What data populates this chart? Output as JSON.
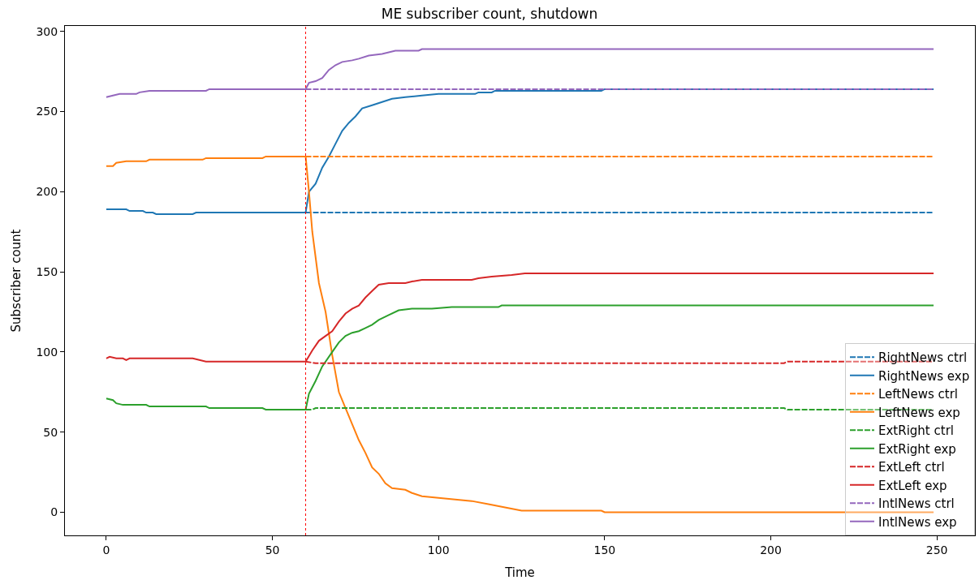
{
  "chart_data": {
    "type": "line",
    "title": "ME subscriber count, shutdown",
    "xlabel": "Time",
    "ylabel": "Subscriber count",
    "xlim": [
      -12.45,
      261.45
    ],
    "ylim": [
      -14.45,
      303.45
    ],
    "xticks": [
      0,
      50,
      100,
      150,
      200,
      250
    ],
    "yticks": [
      0,
      50,
      100,
      150,
      200,
      250,
      300
    ],
    "grid": false,
    "legend": "bottom right",
    "marker": "none",
    "ref_lines": [
      {
        "axis": "x",
        "value": 60,
        "color": "#ff0000",
        "line_style": "dotted"
      }
    ],
    "series": [
      {
        "name": "RightNews ctrl",
        "color": "#1f77b4",
        "line_style": "dashed",
        "x": [
          60,
          249
        ],
        "values": [
          187,
          187
        ]
      },
      {
        "name": "RightNews exp",
        "color": "#1f77b4",
        "line_style": "solid",
        "x": [
          0,
          6,
          7,
          11,
          12,
          14,
          15,
          26,
          27,
          60,
          61,
          63,
          65,
          67,
          69,
          71,
          73,
          75,
          77,
          80,
          83,
          86,
          90,
          95,
          100,
          111,
          112,
          116,
          117,
          149,
          150,
          249
        ],
        "values": [
          189,
          189,
          188,
          188,
          187,
          187,
          186,
          186,
          187,
          187,
          200,
          205,
          215,
          222,
          230,
          238,
          243,
          247,
          252,
          254,
          256,
          258,
          259,
          260,
          261,
          261,
          262,
          262,
          263,
          263,
          264,
          264
        ]
      },
      {
        "name": "LeftNews ctrl",
        "color": "#ff7f0e",
        "line_style": "dashed",
        "x": [
          60,
          249
        ],
        "values": [
          222,
          222
        ]
      },
      {
        "name": "LeftNews exp",
        "color": "#ff7f0e",
        "line_style": "solid",
        "x": [
          0,
          2,
          3,
          6,
          12,
          13,
          29,
          30,
          47,
          48,
          60,
          61,
          62,
          64,
          66,
          68,
          70,
          72,
          74,
          76,
          78,
          80,
          82,
          84,
          86,
          90,
          92,
          95,
          100,
          105,
          110,
          115,
          120,
          125,
          149,
          150,
          249
        ],
        "values": [
          216,
          216,
          218,
          219,
          219,
          220,
          220,
          221,
          221,
          222,
          222,
          200,
          175,
          143,
          125,
          98,
          75,
          65,
          55,
          45,
          37,
          28,
          24,
          18,
          15,
          14,
          12,
          10,
          9,
          8,
          7,
          5,
          3,
          1,
          1,
          0,
          0
        ]
      },
      {
        "name": "ExtRight ctrl",
        "color": "#2ca02c",
        "line_style": "dashed",
        "x": [
          60,
          62,
          63,
          204,
          205,
          249
        ],
        "values": [
          64,
          64,
          65,
          65,
          64,
          64
        ]
      },
      {
        "name": "ExtRight exp",
        "color": "#2ca02c",
        "line_style": "solid",
        "x": [
          0,
          2,
          3,
          5,
          12,
          13,
          30,
          31,
          47,
          48,
          60,
          61,
          63,
          65,
          68,
          70,
          72,
          74,
          76,
          78,
          80,
          82,
          85,
          88,
          92,
          96,
          98,
          104,
          118,
          119,
          249
        ],
        "values": [
          71,
          70,
          68,
          67,
          67,
          66,
          66,
          65,
          65,
          64,
          64,
          74,
          82,
          91,
          100,
          106,
          110,
          112,
          113,
          115,
          117,
          120,
          123,
          126,
          127,
          127,
          127,
          128,
          128,
          129,
          129
        ]
      },
      {
        "name": "ExtLeft ctrl",
        "color": "#d62728",
        "line_style": "dashed",
        "x": [
          60,
          63,
          204,
          205,
          249
        ],
        "values": [
          94,
          93,
          93,
          94,
          94
        ]
      },
      {
        "name": "ExtLeft exp",
        "color": "#d62728",
        "line_style": "solid",
        "x": [
          0,
          1,
          3,
          5,
          6,
          7,
          26,
          28,
          30,
          60,
          62,
          64,
          66,
          68,
          70,
          72,
          74,
          76,
          78,
          80,
          82,
          85,
          90,
          92,
          95,
          110,
          112,
          116,
          122,
          126,
          249
        ],
        "values": [
          96,
          97,
          96,
          96,
          95,
          96,
          96,
          95,
          94,
          94,
          101,
          107,
          110,
          113,
          119,
          124,
          127,
          129,
          134,
          138,
          142,
          143,
          143,
          144,
          145,
          145,
          146,
          147,
          148,
          149,
          149
        ]
      },
      {
        "name": "IntlNews ctrl",
        "color": "#9467bd",
        "line_style": "dashed",
        "x": [
          60,
          249
        ],
        "values": [
          264,
          264
        ]
      },
      {
        "name": "IntlNews exp",
        "color": "#9467bd",
        "line_style": "solid",
        "x": [
          0,
          2,
          4,
          9,
          10,
          13,
          30,
          31,
          60,
          61,
          63,
          65,
          67,
          69,
          71,
          74,
          76,
          79,
          83,
          87,
          94,
          95,
          249
        ],
        "values": [
          259,
          260,
          261,
          261,
          262,
          263,
          263,
          264,
          264,
          268,
          269,
          271,
          276,
          279,
          281,
          282,
          283,
          285,
          286,
          288,
          288,
          289,
          289
        ]
      }
    ]
  }
}
